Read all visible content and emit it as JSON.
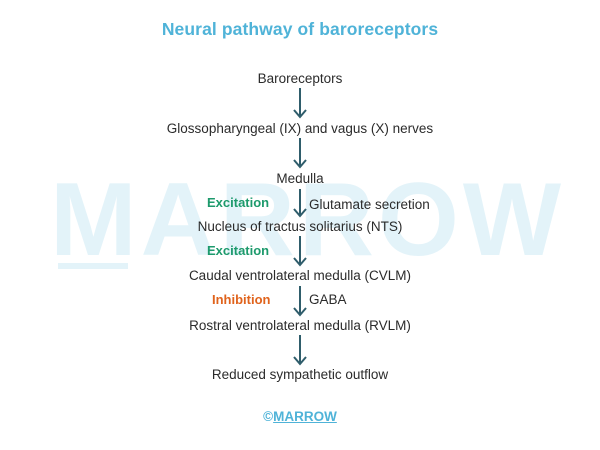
{
  "title": "Neural pathway of baroreceptors",
  "watermark": "MARROW",
  "nodes": [
    "Baroreceptors",
    "Glossopharyngeal (IX) and vagus (X) nerves",
    "Medulla",
    "Nucleus of tractus solitarius (NTS)",
    "Caudal ventrolateral medulla (CVLM)",
    "Rostral ventrolateral medulla (RVLM)",
    "Reduced sympathetic outflow"
  ],
  "labels": {
    "excitation_1": "Excitation",
    "excitation_2": "Excitation",
    "inhibition": "Inhibition",
    "glutamate": "Glutamate secretion",
    "gaba": "GABA"
  },
  "footer": {
    "copyright": "©",
    "brand": "MARROW"
  },
  "colors": {
    "title": "#4fb3d8",
    "arrow": "#2f5d6b",
    "excitation": "#1d9a6c",
    "inhibition": "#e0631c",
    "watermark": "#e3f3f9"
  }
}
